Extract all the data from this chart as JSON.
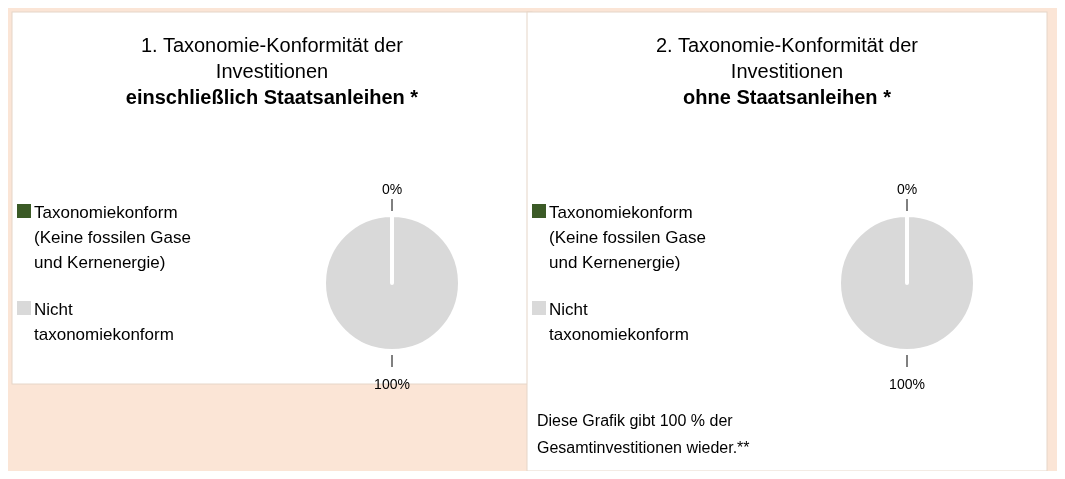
{
  "chart_data": [
    {
      "type": "pie",
      "title": "1. Taxonomie-Konformität der Investitionen",
      "subtitle": "einschließlich Staatsanleihen *",
      "categories": [
        "Taxonomiekonform (Keine fossilen Gase und Kernenergie)",
        "Nicht taxonomiekonform"
      ],
      "values": [
        0,
        100
      ],
      "colors": [
        "#3b5a26",
        "#d9d9d9"
      ],
      "value_labels": [
        "0%",
        "100%"
      ],
      "legend": "left"
    },
    {
      "type": "pie",
      "title": "2. Taxonomie-Konformität der Investitionen",
      "subtitle": "ohne Staatsanleihen *",
      "categories": [
        "Taxonomiekonform (Keine fossilen Gase und Kernenergie)",
        "Nicht taxonomiekonform"
      ],
      "values": [
        0,
        100
      ],
      "colors": [
        "#3b5a26",
        "#d9d9d9"
      ],
      "value_labels": [
        "0%",
        "100%"
      ],
      "legend": "left",
      "annotations": [
        "Diese Grafik gibt 100 % der Gesamtinvestitionen wieder.**"
      ]
    }
  ]
}
